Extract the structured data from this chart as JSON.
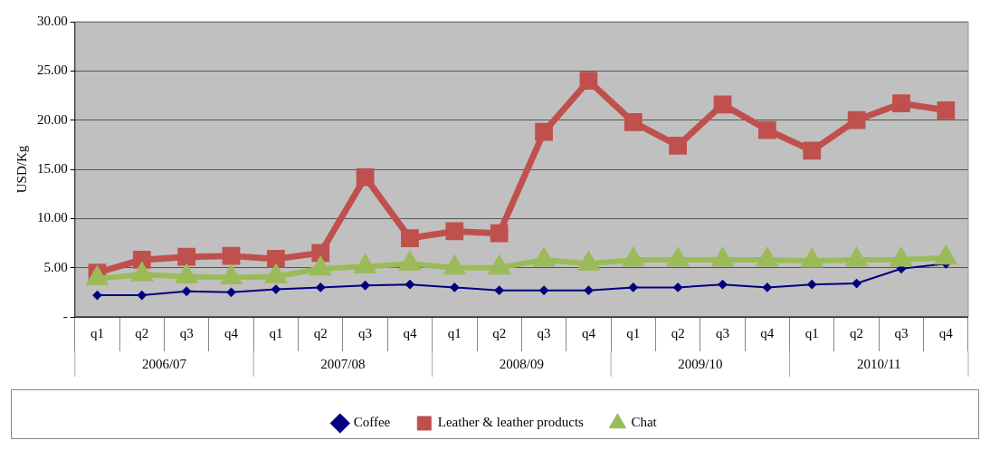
{
  "chart_data": {
    "type": "line",
    "ylabel": "USD/Kg",
    "categories": [
      "q1",
      "q2",
      "q3",
      "q4",
      "q1",
      "q2",
      "q3",
      "q4",
      "q1",
      "q2",
      "q3",
      "q4",
      "q1",
      "q2",
      "q3",
      "q4",
      "q1",
      "q2",
      "q3",
      "q4"
    ],
    "annotations": [
      "2006/07",
      "2007/08",
      "2008/09",
      "2009/10",
      "2010/11"
    ],
    "series": [
      {
        "name": "Coffee",
        "color": "#000080",
        "marker": "diamond",
        "values": [
          2.2,
          2.2,
          2.6,
          2.5,
          2.8,
          3.0,
          3.2,
          3.3,
          3.0,
          2.7,
          2.7,
          2.7,
          3.0,
          3.0,
          3.3,
          3.0,
          3.3,
          3.4,
          4.9,
          5.4
        ]
      },
      {
        "name": "Leather & leather products",
        "color": "#c0504d",
        "marker": "square",
        "values": [
          4.5,
          5.8,
          6.1,
          6.2,
          5.9,
          6.5,
          14.2,
          8.0,
          8.7,
          8.5,
          18.8,
          24.0,
          19.8,
          17.4,
          21.6,
          19.0,
          16.9,
          20.0,
          21.7,
          21.0
        ]
      },
      {
        "name": "Chat",
        "color": "#9bbb59",
        "marker": "triangle",
        "values": [
          3.9,
          4.3,
          4.1,
          4.0,
          4.1,
          4.9,
          5.1,
          5.4,
          5.0,
          5.0,
          5.8,
          5.4,
          5.8,
          5.8,
          5.8,
          5.8,
          5.7,
          5.8,
          5.8,
          6.0
        ]
      }
    ],
    "ylim": [
      0,
      30
    ],
    "yticks": [
      {
        "value": 0,
        "label": "-"
      },
      {
        "value": 5,
        "label": "5.00"
      },
      {
        "value": 10,
        "label": "10.00"
      },
      {
        "value": 15,
        "label": "15.00"
      },
      {
        "value": 20,
        "label": "20.00"
      },
      {
        "value": 25,
        "label": "25.00"
      },
      {
        "value": 30,
        "label": "30.00"
      }
    ],
    "grid": "y",
    "legend": "bottom"
  }
}
